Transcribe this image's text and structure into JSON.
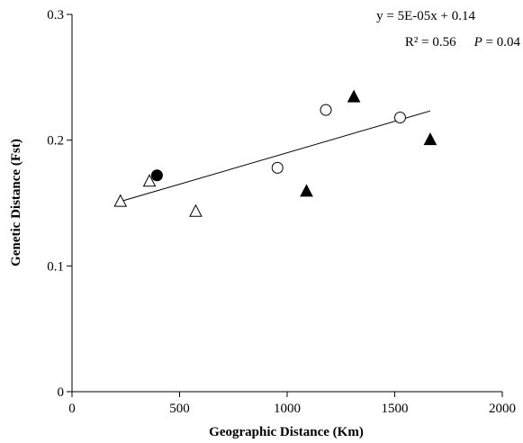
{
  "chart_data": {
    "type": "scatter",
    "title": "",
    "xlabel": "Geographic Distance (Km)",
    "ylabel": "Genetic Distance (Fst)",
    "xlim": [
      0,
      2000
    ],
    "ylim": [
      0,
      0.3
    ],
    "x_ticks": [
      0,
      500,
      1000,
      1500,
      2000
    ],
    "x_tick_labels": [
      "0",
      "500",
      "1000",
      "1500",
      "2000"
    ],
    "y_ticks": [
      0,
      0.1,
      0.2,
      0.3
    ],
    "y_tick_labels": [
      "0",
      "0.1",
      "0.2",
      "0.3"
    ],
    "grid": false,
    "annotations": {
      "equation": "y = 5E-05x + 0.14",
      "r2": "R² = 0.56",
      "p_label": "P",
      "p_value": " = 0.04"
    },
    "trendline": {
      "slope": 5e-05,
      "intercept": 0.14,
      "x_range": [
        225,
        1665
      ]
    },
    "series": [
      {
        "marker": "open-triangle",
        "points": [
          {
            "x": 225,
            "y": 0.151
          },
          {
            "x": 360,
            "y": 0.167
          },
          {
            "x": 575,
            "y": 0.143
          }
        ]
      },
      {
        "marker": "filled-circle",
        "points": [
          {
            "x": 395,
            "y": 0.172
          }
        ]
      },
      {
        "marker": "open-circle",
        "points": [
          {
            "x": 955,
            "y": 0.178
          },
          {
            "x": 1180,
            "y": 0.224
          },
          {
            "x": 1525,
            "y": 0.218
          }
        ]
      },
      {
        "marker": "filled-triangle",
        "points": [
          {
            "x": 1090,
            "y": 0.159
          },
          {
            "x": 1310,
            "y": 0.234
          },
          {
            "x": 1665,
            "y": 0.2
          }
        ]
      }
    ]
  }
}
